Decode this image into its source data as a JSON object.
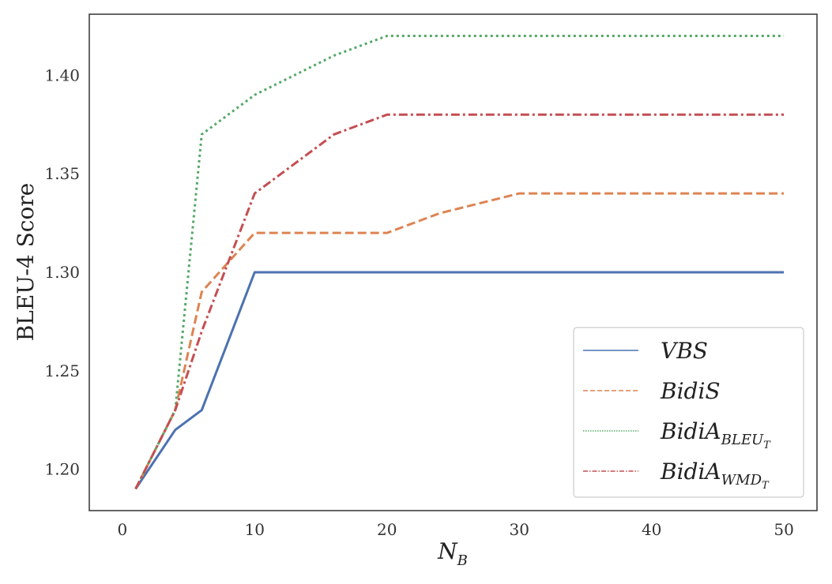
{
  "chart_data": {
    "type": "line",
    "xlabel_main": "N",
    "xlabel_sub": "B",
    "ylabel": "BLEU-4 Score",
    "xlim": [
      -2.5,
      52.5
    ],
    "ylim": [
      1.179,
      1.431
    ],
    "xticks": [
      0,
      10,
      20,
      30,
      40,
      50
    ],
    "yticks": [
      1.2,
      1.25,
      1.3,
      1.35,
      1.4
    ],
    "xtick_labels": [
      "0",
      "10",
      "20",
      "30",
      "40",
      "50"
    ],
    "ytick_labels": [
      "1.20",
      "1.25",
      "1.30",
      "1.35",
      "1.40"
    ],
    "grid": false,
    "legend_position": "lower-right",
    "series": [
      {
        "name": "VBS",
        "name_main": "VBS",
        "name_sub": "",
        "color": "#4c72b0",
        "dash": "solid",
        "x": [
          1,
          4,
          6,
          10,
          20,
          30,
          50
        ],
        "y": [
          1.19,
          1.22,
          1.23,
          1.3,
          1.3,
          1.3,
          1.3
        ]
      },
      {
        "name": "BidiS",
        "name_main": "BidiS",
        "name_sub": "",
        "color": "#dd8452",
        "dash": "dashed",
        "x": [
          1,
          4,
          6,
          10,
          20,
          24,
          30,
          50
        ],
        "y": [
          1.19,
          1.23,
          1.29,
          1.32,
          1.32,
          1.33,
          1.34,
          1.34
        ]
      },
      {
        "name": "BidiA_BLEU_T",
        "name_main": "BidiA",
        "name_sub": "BLEU",
        "name_subsub": "T",
        "color": "#55a868",
        "dash": "dotted",
        "x": [
          1,
          4,
          6,
          10,
          16,
          20,
          30,
          50
        ],
        "y": [
          1.19,
          1.23,
          1.37,
          1.39,
          1.41,
          1.42,
          1.42,
          1.42
        ]
      },
      {
        "name": "BidiA_WMD_T",
        "name_main": "BidiA",
        "name_sub": "WMD",
        "name_subsub": "T",
        "color": "#c44e52",
        "dash": "dashdot",
        "x": [
          1,
          4,
          6,
          10,
          16,
          20,
          30,
          50
        ],
        "y": [
          1.19,
          1.23,
          1.27,
          1.34,
          1.37,
          1.38,
          1.38,
          1.38
        ]
      }
    ]
  }
}
